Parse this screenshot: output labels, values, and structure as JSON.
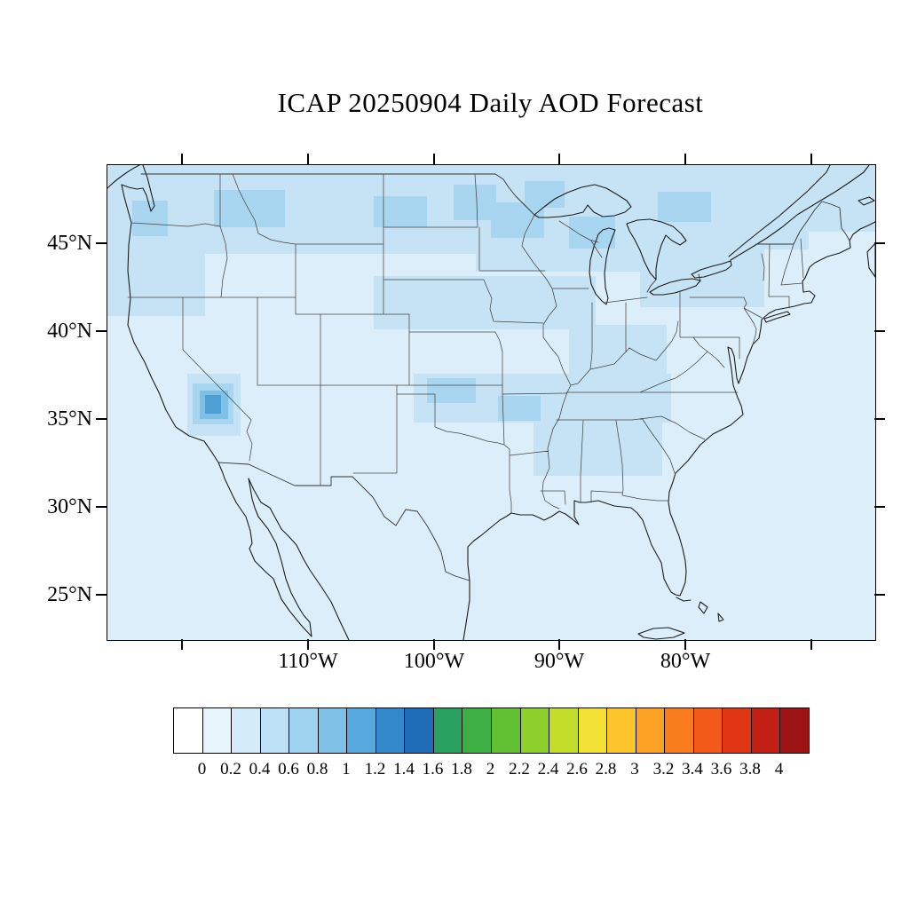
{
  "title": "ICAP 20250904 Daily AOD Forecast",
  "axes": {
    "lat_labels": [
      "45°N",
      "40°N",
      "35°N",
      "30°N",
      "25°N"
    ],
    "lon_labels": [
      "110°W",
      "100°W",
      "90°W",
      "80°W"
    ]
  },
  "colorbar": {
    "tick_labels": [
      "0",
      "0.2",
      "0.4",
      "0.6",
      "0.8",
      "1",
      "1.2",
      "1.4",
      "1.6",
      "1.8",
      "2",
      "2.2",
      "2.4",
      "2.6",
      "2.8",
      "3",
      "3.2",
      "3.4",
      "3.6",
      "3.8",
      "4"
    ],
    "cell_colors": [
      "#ffffff",
      "#e9f5fc",
      "#d4ebf9",
      "#bce0f5",
      "#a0d3ef",
      "#7fc0e7",
      "#57a8dc",
      "#3389cc",
      "#1f6cb8",
      "#27a060",
      "#3cb043",
      "#62c132",
      "#8ed02b",
      "#c3de2a",
      "#f2e034",
      "#fbc52b",
      "#fba123",
      "#f97d1c",
      "#f25a19",
      "#e03616",
      "#c22014",
      "#9d1212"
    ]
  },
  "map": {
    "field_colors": [
      "#dceef9",
      "#c6e3f6",
      "#a8d6f0",
      "#7fc0e7",
      "#4d9fd6"
    ],
    "coast_line_color": "#1c1c1c",
    "state_line_color": "#444444"
  },
  "chart_data": {
    "type": "heatmap",
    "title": "ICAP 20250904 Daily AOD Forecast",
    "region": "Continental United States and adjacent ocean",
    "x_tick_labels_deg_west": [
      110,
      100,
      90,
      80
    ],
    "y_tick_labels_deg_north": [
      45,
      40,
      35,
      30,
      25
    ],
    "colorbar_levels": [
      0,
      0.2,
      0.4,
      0.6,
      0.8,
      1,
      1.2,
      1.4,
      1.6,
      1.8,
      2,
      2.2,
      2.4,
      2.6,
      2.8,
      3,
      3.2,
      3.4,
      3.6,
      3.8,
      4
    ],
    "visible_value_range": [
      0,
      1.0
    ],
    "field_summary": "AOD mostly 0-0.2 everywhere; 0.2-0.4 bands across the northern US, Pacific Northwest, upper Midwest/Great Lakes, central plains and mid-South; localized maximum near 0.8-1.0 over central California"
  }
}
